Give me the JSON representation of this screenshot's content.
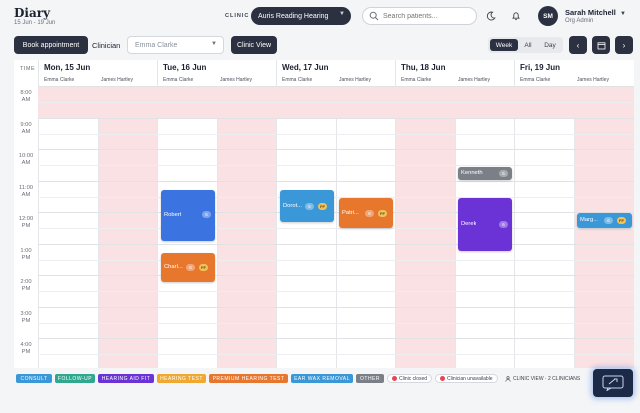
{
  "header": {
    "title": "Diary",
    "date_range": "15 Jun - 19 Jun",
    "clinic_label": "CLINIC",
    "clinic_selected": "Auris Reading Hearing",
    "search_placeholder": "Search patients...",
    "user": {
      "initials": "SM",
      "name": "Sarah Mitchell",
      "role": "Org Admin"
    }
  },
  "toolbar": {
    "book_label": "Book appointment",
    "clinician_label": "Clinician",
    "clinician_selected": "Emma Clarke",
    "clinic_view_label": "Clinic View",
    "views": [
      "Week",
      "All",
      "Day"
    ],
    "active_view": "Week"
  },
  "calendar": {
    "time_header": "TIME",
    "days": [
      {
        "name": "Mon, 15 Jun",
        "clinicians": [
          "Emma Clarke",
          "James Hartley"
        ]
      },
      {
        "name": "Tue, 16 Jun",
        "clinicians": [
          "Emma Clarke",
          "James Hartley"
        ]
      },
      {
        "name": "Wed, 17 Jun",
        "clinicians": [
          "Emma Clarke",
          "James Hartley"
        ]
      },
      {
        "name": "Thu, 18 Jun",
        "clinicians": [
          "Emma Clarke",
          "James Hartley"
        ]
      },
      {
        "name": "Fri, 19 Jun",
        "clinicians": [
          "Emma Clarke",
          "James Hartley"
        ]
      }
    ],
    "times": [
      [
        "8:00",
        "AM"
      ],
      [
        "9:00",
        "AM"
      ],
      [
        "10:00",
        "AM"
      ],
      [
        "11:00",
        "AM"
      ],
      [
        "12:00",
        "PM"
      ],
      [
        "1:00",
        "PM"
      ],
      [
        "2:00",
        "PM"
      ],
      [
        "3:00",
        "PM"
      ],
      [
        "4:00",
        "PM"
      ]
    ],
    "appointments": [
      {
        "name": "Robert",
        "badge": "6",
        "ff": "",
        "color": "#3b73e0"
      },
      {
        "name": "Charl...",
        "badge": "6",
        "ff": "FF",
        "color": "#e8772e"
      },
      {
        "name": "Dorot...",
        "badge": "6",
        "ff": "FF",
        "color": "#3a97d8"
      },
      {
        "name": "Patri...",
        "badge": "6",
        "ff": "FF",
        "color": "#e8772e"
      },
      {
        "name": "Kenneth",
        "badge": "6",
        "ff": "",
        "color": "#7b7f88"
      },
      {
        "name": "Derek",
        "badge": "6",
        "ff": "",
        "color": "#6b33d6"
      },
      {
        "name": "Marg...",
        "badge": "6",
        "ff": "FF",
        "color": "#3a97d8"
      }
    ]
  },
  "legend": {
    "items": [
      {
        "label": "CONSULT",
        "color": "#3a97d8"
      },
      {
        "label": "FOLLOW-UP",
        "color": "#2fa88e"
      },
      {
        "label": "HEARING AID FIT",
        "color": "#6b33d6"
      },
      {
        "label": "HEARING TEST",
        "color": "#f0a830"
      },
      {
        "label": "PREMIUM HEARING TEST",
        "color": "#e8772e"
      },
      {
        "label": "EAR WAX REMOVAL",
        "color": "#3a97d8"
      },
      {
        "label": "OTHER",
        "color": "#7b7f88"
      }
    ],
    "clinic_closed": "Clinic closed",
    "clinician_unavailable": "Clinician unavailable",
    "clinic_view_info": "CLINIC VIEW · 2 CLINICIANS"
  }
}
